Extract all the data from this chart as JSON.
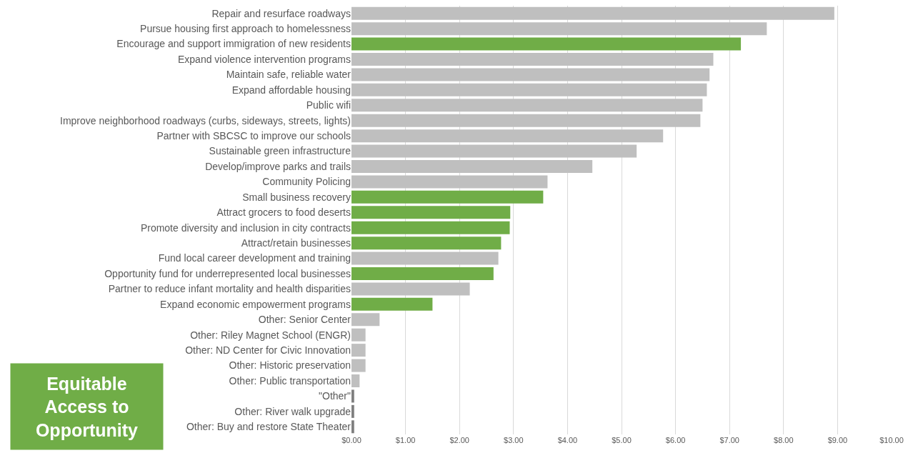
{
  "chart_data": {
    "type": "bar",
    "orientation": "horizontal",
    "categories": [
      "Repair and resurface roadways",
      "Pursue housing first approach to homelessness",
      "Encourage and support immigration of new residents",
      "Expand violence intervention programs",
      "Maintain safe, reliable water",
      "Expand affordable housing",
      "Public wifi",
      "Improve neighborhood roadways (curbs, sideways, streets, lights)",
      "Partner with SBCSC to improve our schools",
      "Sustainable green infrastructure",
      "Develop/improve parks and trails",
      "Community Policing",
      "Small business recovery",
      "Attract grocers to food deserts",
      "Promote diversity and inclusion in city contracts",
      "Attract/retain businesses",
      "Fund local career development and training",
      "Opportunity fund for underrepresented local businesses",
      "Partner to reduce infant mortality and health disparities",
      "Expand economic empowerment programs",
      "Other: Senior Center",
      "Other: Riley Magnet School (ENGR)",
      "Other: ND Center for Civic Innovation",
      "Other: Historic preservation",
      "Other: Public transportation",
      "\"Other\"",
      "Other: River walk upgrade",
      "Other: Buy and restore State Theater"
    ],
    "values": [
      8.94,
      7.69,
      7.21,
      6.7,
      6.63,
      6.58,
      6.5,
      6.46,
      5.77,
      5.28,
      4.46,
      3.63,
      3.55,
      2.94,
      2.93,
      2.77,
      2.72,
      2.63,
      2.19,
      1.5,
      0.52,
      0.26,
      0.26,
      0.26,
      0.15,
      0.05,
      0.05,
      0.05
    ],
    "colors": [
      "#bfbfbf",
      "#bfbfbf",
      "#70ad47",
      "#bfbfbf",
      "#bfbfbf",
      "#bfbfbf",
      "#bfbfbf",
      "#bfbfbf",
      "#bfbfbf",
      "#bfbfbf",
      "#bfbfbf",
      "#bfbfbf",
      "#70ad47",
      "#70ad47",
      "#70ad47",
      "#70ad47",
      "#bfbfbf",
      "#70ad47",
      "#bfbfbf",
      "#70ad47",
      "#bfbfbf",
      "#bfbfbf",
      "#bfbfbf",
      "#bfbfbf",
      "#bfbfbf",
      "#7f7f7f",
      "#7f7f7f",
      "#7f7f7f"
    ],
    "xlim": [
      0,
      10
    ],
    "xticks": [
      {
        "value": 0,
        "label": "$0.00"
      },
      {
        "value": 1,
        "label": "$1.00"
      },
      {
        "value": 2,
        "label": "$2.00"
      },
      {
        "value": 3,
        "label": "$3.00"
      },
      {
        "value": 4,
        "label": "$4.00"
      },
      {
        "value": 5,
        "label": "$5.00"
      },
      {
        "value": 6,
        "label": "$6.00"
      },
      {
        "value": 7,
        "label": "$7.00"
      },
      {
        "value": 8,
        "label": "$8.00"
      },
      {
        "value": 9,
        "label": "$9.00"
      },
      {
        "value": 10,
        "label": "$10.00"
      }
    ],
    "grid": "x",
    "annotations": [
      "Equitable\nAccess to\nOpportunity"
    ]
  }
}
